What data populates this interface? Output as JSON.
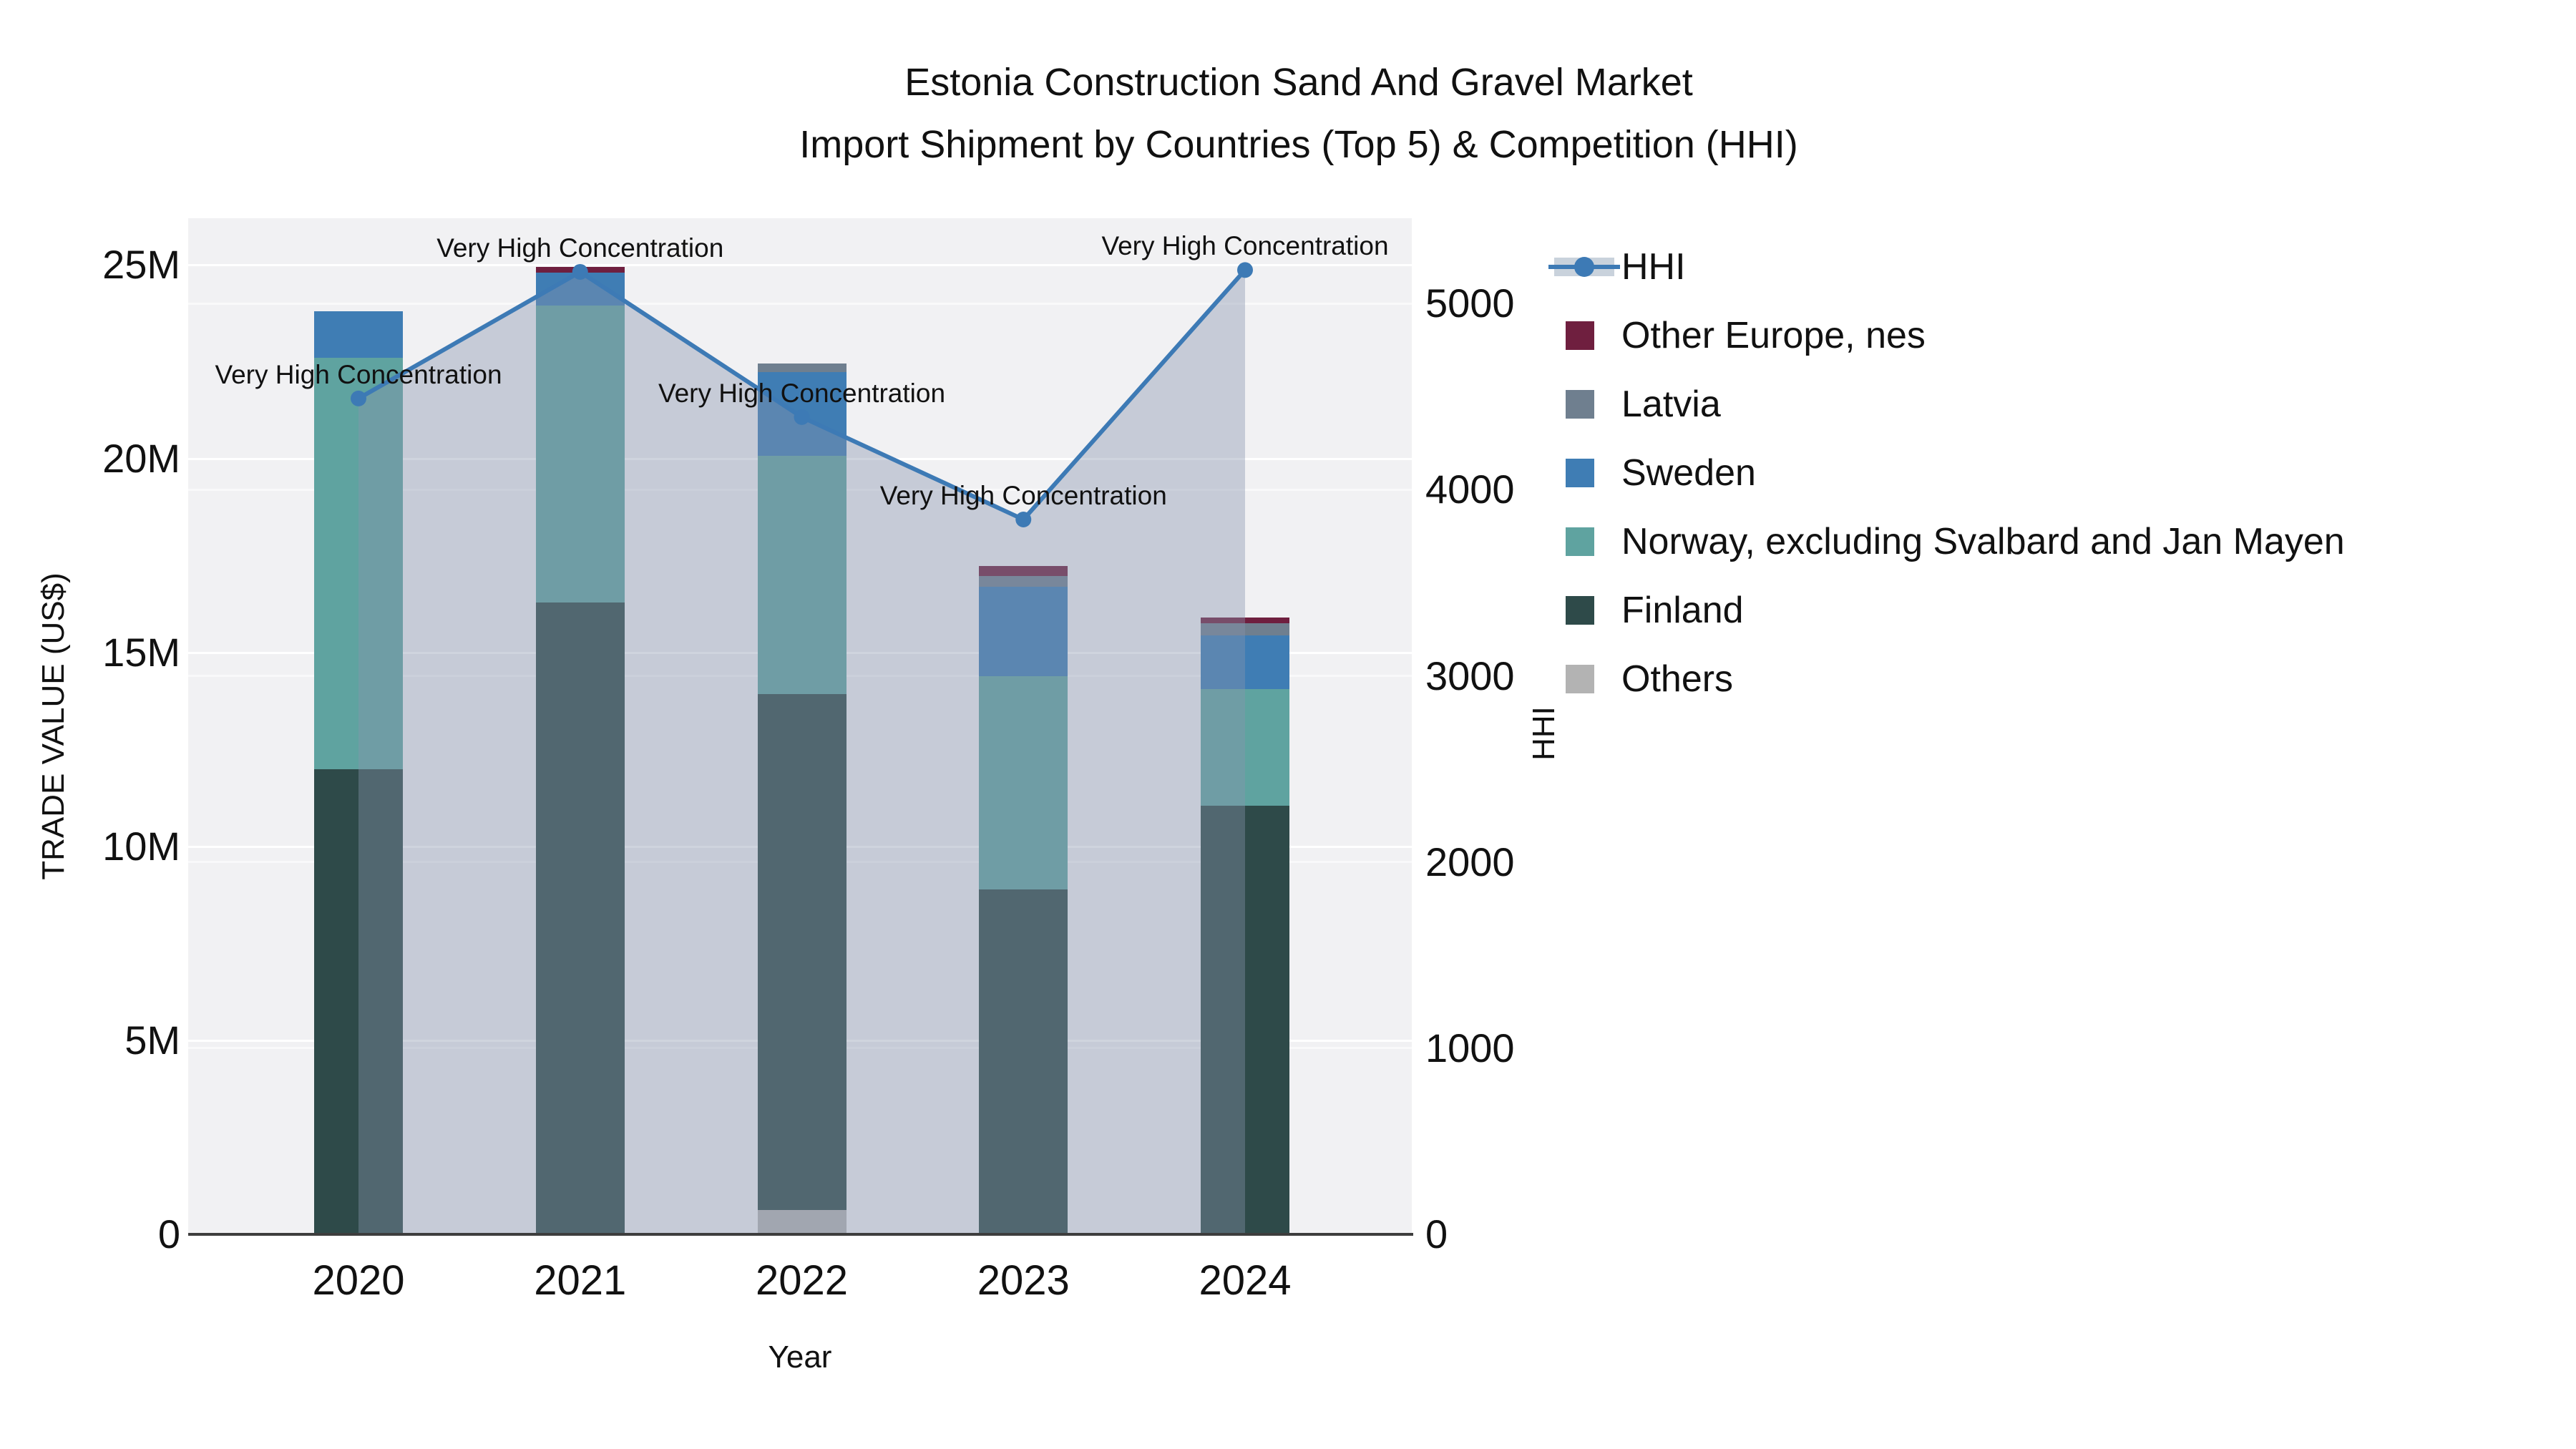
{
  "chart_data": {
    "type": "bar+line",
    "title": "Estonia Construction Sand And Gravel Market",
    "subtitle": "Import Shipment by Countries (Top 5) & Competition (HHI)",
    "xlabel": "Year",
    "ylabel_left": "TRADE VALUE (US$)",
    "ylabel_right": "HHI",
    "categories": [
      "2020",
      "2021",
      "2022",
      "2023",
      "2024"
    ],
    "value_unit": "million US$",
    "stack_order_bottom_to_top": [
      "Others",
      "Finland",
      "Norway, excluding Svalbard and Jan Mayen",
      "Sweden",
      "Latvia",
      "Other Europe, nes"
    ],
    "series": [
      {
        "name": "Other Europe, nes",
        "color": "#6f1f3f",
        "values": [
          0,
          0.15,
          0,
          0.26,
          0.15
        ]
      },
      {
        "name": "Latvia",
        "color": "#6f7f8f",
        "values": [
          0,
          0,
          0.22,
          0.28,
          0.31
        ]
      },
      {
        "name": "Sweden",
        "color": "#3f7db4",
        "values": [
          1.2,
          0.85,
          2.15,
          2.3,
          1.4
        ]
      },
      {
        "name": "Norway, excluding Svalbard and Jan Mayen",
        "color": "#5fa3a0",
        "values": [
          10.6,
          7.65,
          6.15,
          5.5,
          3.0
        ]
      },
      {
        "name": "Finland",
        "color": "#2e4a49",
        "values": [
          12.0,
          16.3,
          13.3,
          8.9,
          11.05
        ]
      },
      {
        "name": "Others",
        "color": "#b3b3b3",
        "values": [
          0,
          0,
          0.63,
          0,
          0
        ]
      }
    ],
    "bar_totals_M": [
      23.8,
      24.95,
      22.45,
      17.24,
      15.91
    ],
    "hhi": {
      "name": "HHI",
      "line_color": "#3d7ab5",
      "area_fill": "rgba(134,148,172,0.40)",
      "values": [
        4490,
        5170,
        4390,
        3840,
        5180
      ]
    },
    "annotation_text": "Very High Concentration",
    "annotations": [
      "Very High Concentration",
      "Very High Concentration",
      "Very High Concentration",
      "Very High Concentration",
      "Very High Concentration"
    ],
    "left_axis": {
      "tick_values": [
        0,
        5,
        10,
        15,
        20,
        25
      ],
      "tick_labels": [
        "0",
        "5M",
        "10M",
        "15M",
        "20M",
        "25M"
      ]
    },
    "right_axis": {
      "tick_values": [
        0,
        1000,
        2000,
        3000,
        4000,
        5000
      ],
      "tick_labels": [
        "0",
        "1000",
        "2000",
        "3000",
        "4000",
        "5000"
      ]
    },
    "legend_order": [
      "HHI",
      "Other Europe, nes",
      "Latvia",
      "Sweden",
      "Norway, excluding Svalbard and Jan Mayen",
      "Finland",
      "Others"
    ],
    "legend_colors": {
      "Other Europe, nes": "#6f1f3f",
      "Latvia": "#6f7f8f",
      "Sweden": "#3f7db4",
      "Norway, excluding Svalbard and Jan Mayen": "#5fa3a0",
      "Finland": "#2e4a49",
      "Others": "#b3b3b3"
    },
    "plot_background": "#f1f1f3"
  }
}
